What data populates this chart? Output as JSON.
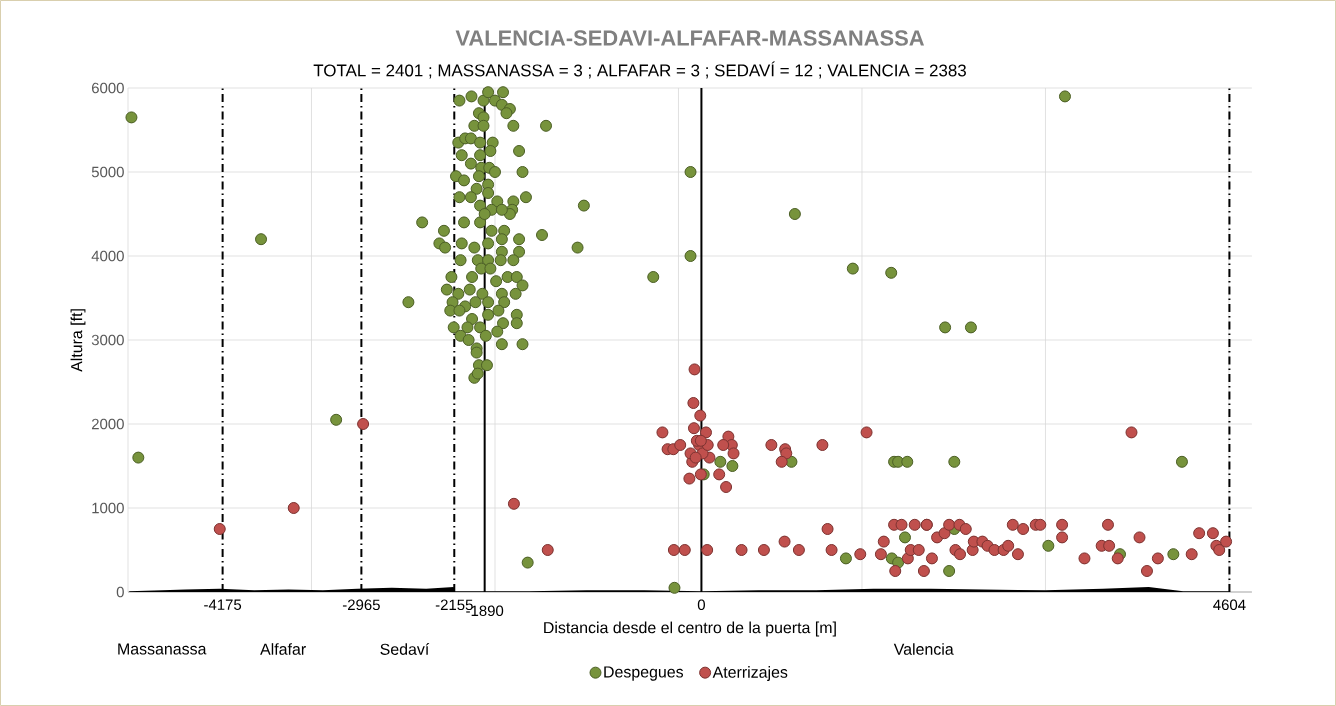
{
  "chart_data": {
    "type": "scatter",
    "title": "VALENCIA-SEDAVI-ALFAFAR-MASSANASSA",
    "subtitle": "TOTAL = 2401 ; MASSANASSA = 3 ; ALFAFAR =  3 ; SEDAVÍ = 12 ; VALENCIA = 2383",
    "xlabel": "Distancia desde el centro de la puerta [m]",
    "ylabel": "Altura [ft]",
    "xlim": [
      -5000,
      4800
    ],
    "ylim": [
      0,
      6000
    ],
    "xticks": [
      {
        "value": -5000,
        "label": null
      },
      {
        "value": -3400,
        "label": null
      },
      {
        "value": -1800,
        "label": null
      },
      {
        "value": -200,
        "label": null
      },
      {
        "value": 1400,
        "label": null
      },
      {
        "value": 3000,
        "label": null
      },
      {
        "value": 4600,
        "label": null
      }
    ],
    "yticks": [
      0,
      1000,
      2000,
      3000,
      4000,
      5000,
      6000
    ],
    "grid": true,
    "legend": "bottom",
    "marker": "circle",
    "series": [
      {
        "name": "Despegues",
        "color": "#77933c",
        "x": [
          -4970,
          -4910,
          -3840,
          -3185,
          -2555,
          -2435,
          -2245,
          -2285,
          -2235,
          -1355,
          -1025,
          -1390,
          -1080,
          -420,
          -95,
          -95,
          815,
          -1515,
          -235,
          165,
          270,
          785,
          20,
          3170,
          1320,
          1655,
          2125,
          2350,
          1680,
          1715,
          1795,
          2205,
          4190,
          1775,
          1260,
          1660,
          1715,
          2160,
          2205,
          3025,
          3650,
          4115,
          -2110,
          -2005,
          -1900,
          -1860,
          -1800,
          -1730,
          -1740,
          -1670,
          -1700,
          -1640,
          -1940,
          -1900,
          -1980,
          -1900,
          -2120,
          -2060,
          -2010,
          -1930,
          -1820,
          -1840,
          -2090,
          -1930,
          -1590,
          -2010,
          -1920,
          -1850,
          -1800,
          -1560,
          -2140,
          -2070,
          -1940,
          -1860,
          -1960,
          -2110,
          -2010,
          -1860,
          -1780,
          -1640,
          -1530,
          -1650,
          -1670,
          -1930,
          -1830,
          -1740,
          -2070,
          -1930,
          -1890,
          -1830,
          -1720,
          -1590,
          -1740,
          -2090,
          -1980,
          -1860,
          -1740,
          -1590,
          -2100,
          -1950,
          -1860,
          -1750,
          -1640,
          -2180,
          -2000,
          -1920,
          -1840,
          -1790,
          -1690,
          -1610,
          -1560,
          -2220,
          -2120,
          -2020,
          -1910,
          -1740,
          -1620,
          -2170,
          -2060,
          -1970,
          -1860,
          -1720,
          -2190,
          -2110,
          -2000,
          -1860,
          -1770,
          -1610,
          -1610,
          -2160,
          -2040,
          -1930,
          -1730,
          -2100,
          -2030,
          -1880,
          -1780,
          -1740,
          -1560,
          -1960,
          -1960,
          -1940,
          -1870,
          -1980,
          -1950
        ],
        "values": [
          5650,
          1600,
          4200,
          2050,
          3450,
          4400,
          4300,
          4150,
          4100,
          5550,
          4600,
          4250,
          4100,
          3750,
          5000,
          4000,
          4500,
          350,
          50,
          1550,
          1500,
          1550,
          1400,
          5900,
          3850,
          3800,
          3150,
          3150,
          1550,
          1550,
          1550,
          1550,
          1550,
          650,
          400,
          400,
          350,
          250,
          750,
          550,
          450,
          450,
          5850,
          5900,
          5850,
          5950,
          5850,
          5950,
          5800,
          5750,
          5700,
          5550,
          5700,
          5650,
          5550,
          5550,
          5350,
          5400,
          5400,
          5350,
          5350,
          5250,
          5200,
          5200,
          5250,
          5100,
          5050,
          5050,
          5000,
          5000,
          4950,
          4900,
          4950,
          4850,
          4800,
          4700,
          4700,
          4750,
          4650,
          4650,
          4700,
          4550,
          4500,
          4600,
          4550,
          4550,
          4400,
          4400,
          4500,
          4300,
          4300,
          4200,
          4200,
          4150,
          4100,
          4150,
          4050,
          4050,
          3950,
          3950,
          3950,
          3950,
          3950,
          3750,
          3750,
          3850,
          3850,
          3700,
          3750,
          3750,
          3650,
          3600,
          3550,
          3600,
          3550,
          3550,
          3550,
          3450,
          3400,
          3450,
          3450,
          3450,
          3350,
          3350,
          3250,
          3300,
          3350,
          3300,
          3200,
          3150,
          3150,
          3150,
          3200,
          3050,
          3000,
          3050,
          3100,
          2950,
          2950,
          2900,
          2850,
          2700,
          2700,
          2550,
          2600
        ]
      },
      {
        "name": "Aterrizajes",
        "color": "#c0504d",
        "x": [
          -4200,
          -3555,
          -2950,
          -1635,
          -1340,
          -240,
          -145,
          50,
          350,
          545,
          725,
          850,
          -60,
          -70,
          -10,
          -340,
          610,
          730,
          740,
          700,
          215,
          155,
          -105,
          -5,
          -20,
          -295,
          -245,
          -185,
          235,
          265,
          280,
          190,
          -65,
          40,
          -80,
          70,
          -40,
          10,
          -95,
          55,
          -5,
          -50,
          1440,
          1055,
          3750,
          1100,
          1135,
          1385,
          1565,
          1590,
          1680,
          1745,
          1860,
          1965,
          1965,
          1690,
          1800,
          1825,
          1895,
          1940,
          2010,
          2055,
          2120,
          2160,
          2250,
          2305,
          2215,
          2255,
          2365,
          2375,
          2450,
          2495,
          2555,
          2635,
          2675,
          2760,
          2715,
          2805,
          2915,
          2955,
          3145,
          3145,
          3340,
          3545,
          3490,
          3555,
          3630,
          3820,
          3885,
          3980,
          4275,
          4340,
          4460,
          4490,
          4515,
          4575
        ],
        "values": [
          750,
          1000,
          2000,
          1050,
          500,
          500,
          500,
          500,
          500,
          500,
          600,
          500,
          2650,
          2250,
          2100,
          1900,
          1750,
          1700,
          1650,
          1550,
          1250,
          1400,
          1350,
          1400,
          1750,
          1700,
          1700,
          1750,
          1850,
          1750,
          1650,
          1750,
          1950,
          1900,
          1550,
          1600,
          1800,
          1650,
          1650,
          1750,
          1800,
          1600,
          1900,
          1750,
          1900,
          750,
          500,
          450,
          450,
          600,
          800,
          800,
          800,
          800,
          800,
          250,
          400,
          500,
          500,
          250,
          400,
          650,
          700,
          800,
          800,
          750,
          500,
          450,
          500,
          600,
          600,
          550,
          500,
          500,
          550,
          450,
          800,
          750,
          800,
          800,
          800,
          650,
          400,
          800,
          550,
          550,
          400,
          650,
          250,
          400,
          450,
          700,
          700,
          550,
          500,
          600
        ]
      },
      {
        "type": "area",
        "color": "#000000",
        "marker": "none",
        "x": [
          -4990,
          -4700,
          -4500,
          -4200,
          -3900,
          -3600,
          -3300,
          -3000,
          -2700,
          -2400,
          -2160,
          -2150,
          -1500,
          -1000,
          -500,
          0,
          500,
          1000,
          1500,
          2000,
          2500,
          3000,
          3500,
          3900,
          4200,
          4600
        ],
        "values": [
          10,
          20,
          30,
          40,
          20,
          30,
          20,
          40,
          50,
          40,
          60,
          10,
          10,
          20,
          20,
          10,
          20,
          20,
          40,
          40,
          30,
          20,
          40,
          60,
          10,
          10
        ]
      }
    ],
    "ref_lines": [
      {
        "axis": "x",
        "value": -4175,
        "label": "-4175",
        "line_style": "dashed",
        "color": "#000000"
      },
      {
        "axis": "x",
        "value": -2965,
        "label": "-2965",
        "line_style": "dashed",
        "color": "#000000"
      },
      {
        "axis": "x",
        "value": -2155,
        "label": "-2155",
        "line_style": "dashed",
        "color": "#000000"
      },
      {
        "axis": "x",
        "value": -1890,
        "label": "-1890",
        "line_style": "solid",
        "color": "#000000"
      },
      {
        "axis": "x",
        "value": 0,
        "label": "0",
        "line_style": "solid",
        "color": "#000000"
      },
      {
        "axis": "x",
        "value": 4604,
        "label": "4604",
        "line_style": "dashed",
        "color": "#000000"
      }
    ],
    "annotations": [
      "Massanassa",
      "Alfafar",
      "Sedaví",
      "Valencia"
    ]
  }
}
